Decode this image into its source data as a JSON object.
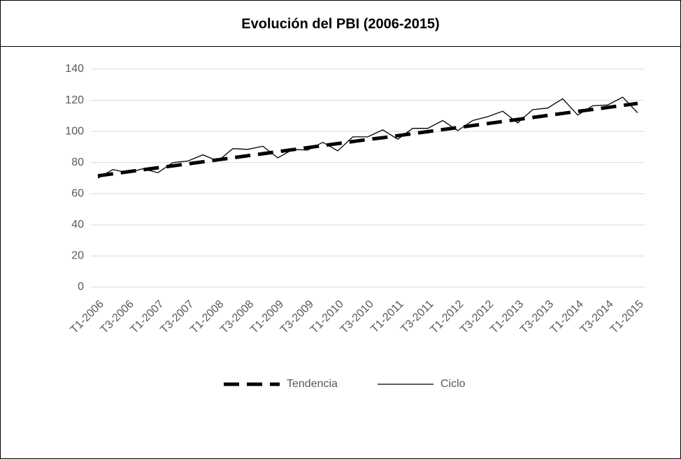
{
  "chart_data": {
    "type": "line",
    "title": "Evolución del PBI (2006-2015)",
    "categories": [
      "T1-2006",
      null,
      "T3-2006",
      null,
      "T1-2007",
      null,
      "T3-2007",
      null,
      "T1-2008",
      null,
      "T3-2008",
      null,
      "T1-2009",
      null,
      "T3-2009",
      null,
      "T1-2010",
      null,
      "T3-2010",
      null,
      "T1-2011",
      null,
      "T3-2011",
      null,
      "T1-2012",
      null,
      "T3-2012",
      null,
      "T1-2013",
      null,
      "T3-2013",
      null,
      "T1-2014",
      null,
      "T3-2014",
      null,
      "T1-2015"
    ],
    "series": [
      {
        "name": "Tendencia",
        "color": "#000000",
        "line_style": "dashed",
        "values": [
          71.5,
          72.8,
          74.1,
          75.4,
          76.7,
          77.9,
          79.2,
          80.5,
          81.8,
          83.1,
          84.4,
          85.7,
          87.0,
          88.3,
          89.6,
          90.9,
          92.2,
          93.5,
          94.8,
          96.0,
          97.3,
          98.6,
          99.9,
          101.2,
          102.5,
          103.8,
          105.1,
          106.4,
          107.7,
          109.0,
          110.3,
          111.6,
          112.9,
          114.1,
          115.4,
          116.7,
          118.0
        ]
      },
      {
        "name": "Ciclo",
        "color": "#000000",
        "line_style": "solid",
        "values": [
          70,
          75.5,
          73.5,
          76,
          73.5,
          80,
          81,
          85,
          81,
          89,
          88.5,
          90.5,
          83,
          88.5,
          88,
          93,
          87.5,
          96.5,
          96.5,
          101,
          95,
          102,
          102,
          107,
          100.5,
          107,
          109.5,
          113,
          105.5,
          114,
          115,
          121,
          110.5,
          116.5,
          117,
          122,
          112
        ]
      }
    ],
    "ylim": [
      0,
      140
    ],
    "yticks": [
      0,
      20,
      40,
      60,
      80,
      100,
      120,
      140
    ],
    "grid": true,
    "legend": "bottom"
  }
}
